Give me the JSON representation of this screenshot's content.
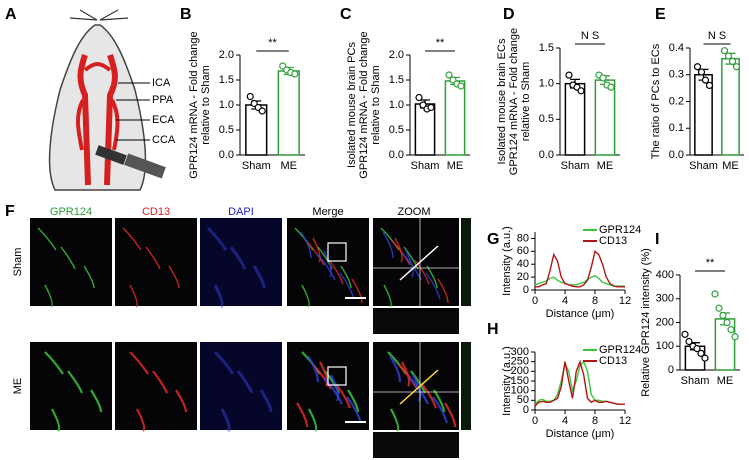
{
  "panel_labels": [
    "A",
    "B",
    "C",
    "D",
    "E",
    "F",
    "G",
    "H",
    "I"
  ],
  "diagram": {
    "labels": [
      "ICA",
      "PPA",
      "ECA",
      "CCA"
    ]
  },
  "image_grid": {
    "columns": [
      "GPR124",
      "CD13",
      "DAPI",
      "Merge",
      "ZOOM"
    ],
    "rows": [
      "Sham",
      "ME"
    ]
  },
  "chart_data": [
    {
      "type": "bar",
      "ylabel": [
        "GPR124 mRNA - Fold change",
        "relative to Sham"
      ],
      "categories": [
        "Sham",
        "ME"
      ],
      "colors": [
        "#000000",
        "#2e9e3a"
      ],
      "values": [
        1.0,
        1.68
      ],
      "errors": [
        0.08,
        0.07
      ],
      "points": [
        [
          1.17,
          1.03,
          0.95,
          0.88
        ],
        [
          1.78,
          1.7,
          1.65,
          1.62
        ]
      ],
      "ylim": [
        0,
        2
      ],
      "yticks": [
        {
          "value": 0,
          "label": "0.0"
        },
        0.5,
        {
          "value": 1,
          "label": "1.0"
        },
        1.5,
        {
          "value": 2,
          "label": "2.0"
        }
      ],
      "annotation": "**"
    },
    {
      "type": "bar",
      "ylabel": [
        "Isolated mouse brain PCs",
        "GPR124 mRNA - Fold change",
        "relative to Sham"
      ],
      "categories": [
        "Sham",
        "ME"
      ],
      "colors": [
        "#000000",
        "#2e9e3a"
      ],
      "values": [
        1.02,
        1.48
      ],
      "errors": [
        0.08,
        0.07
      ],
      "points": [
        [
          1.15,
          1.0,
          0.92,
          0.95
        ],
        [
          1.6,
          1.5,
          1.42,
          1.38
        ]
      ],
      "ylim": [
        0,
        2
      ],
      "yticks": [
        {
          "value": 0,
          "label": "0.0"
        },
        0.5,
        {
          "value": 1,
          "label": "1.0"
        },
        1.5,
        {
          "value": 2,
          "label": "2.0"
        }
      ],
      "annotation": "**"
    },
    {
      "type": "bar",
      "ylabel": [
        "Isolated mouse brain ECs",
        "GPR124 mRNA - Fold change",
        "relative to Sham"
      ],
      "categories": [
        "Sham",
        "ME"
      ],
      "colors": [
        "#000000",
        "#2e9e3a"
      ],
      "values": [
        1.0,
        1.05
      ],
      "errors": [
        0.06,
        0.06
      ],
      "points": [
        [
          1.12,
          0.98,
          0.95,
          0.9
        ],
        [
          1.12,
          1.08,
          0.98,
          0.95
        ]
      ],
      "ylim": [
        0,
        1.5
      ],
      "yticks": [
        {
          "value": 0,
          "label": "0.0"
        },
        0.5,
        {
          "value": 1,
          "label": "1.0"
        },
        1.5
      ],
      "annotation": "N S"
    },
    {
      "type": "bar",
      "ylabel": [
        "The ratio of PCs to ECs"
      ],
      "categories": [
        "Sham",
        "ME"
      ],
      "colors": [
        "#000000",
        "#2e9e3a"
      ],
      "values": [
        0.3,
        0.36
      ],
      "errors": [
        0.02,
        0.02
      ],
      "points": [
        [
          0.33,
          0.31,
          0.28,
          0.26
        ],
        [
          0.39,
          0.37,
          0.35,
          0.33
        ]
      ],
      "ylim": [
        0,
        0.4
      ],
      "yticks": [
        {
          "value": 0,
          "label": "0.0"
        },
        0.1,
        0.2,
        0.3,
        0.4
      ],
      "annotation": "N S"
    },
    {
      "type": "line",
      "xlabel": "Distance (μm)",
      "ylabel": [
        "Intensity (a.u.)"
      ],
      "x": [
        0,
        0.5,
        1,
        1.5,
        2,
        2.5,
        3,
        3.5,
        4,
        4.5,
        5,
        5.5,
        6,
        6.5,
        7,
        7.5,
        8,
        8.5,
        9,
        9.5,
        10,
        10.5,
        11,
        11.5,
        12
      ],
      "series": [
        {
          "name": "GPR124",
          "color": "#3cc43c",
          "values": [
            8,
            10,
            12,
            14,
            18,
            20,
            15,
            12,
            10,
            8,
            8,
            8,
            10,
            12,
            16,
            20,
            22,
            18,
            12,
            10,
            8,
            6,
            6,
            6,
            6
          ]
        },
        {
          "name": "CD13",
          "color": "#b01515",
          "values": [
            5,
            5,
            8,
            10,
            30,
            55,
            45,
            20,
            10,
            8,
            6,
            5,
            5,
            8,
            15,
            35,
            60,
            55,
            40,
            20,
            10,
            6,
            5,
            5,
            5
          ]
        }
      ],
      "xlim": [
        0,
        12
      ],
      "xticks": [
        0,
        4,
        8,
        12
      ],
      "ylim": [
        0,
        90
      ],
      "yticks": [
        0,
        20,
        40,
        60,
        80
      ]
    },
    {
      "type": "line",
      "xlabel": "Distance (μm)",
      "ylabel": [
        "Intensity (a.u.)"
      ],
      "x": [
        0,
        0.5,
        1,
        1.5,
        2,
        2.5,
        3,
        3.5,
        4,
        4.5,
        5,
        5.5,
        6,
        6.5,
        7,
        7.5,
        8,
        8.5,
        9,
        9.5,
        10,
        10.5,
        11,
        11.5,
        12
      ],
      "series": [
        {
          "name": "GPR124",
          "color": "#3cc43c",
          "values": [
            30,
            50,
            55,
            45,
            45,
            50,
            80,
            150,
            240,
            200,
            100,
            150,
            230,
            250,
            200,
            80,
            50,
            50,
            45,
            45,
            40,
            35,
            30,
            30,
            30
          ]
        },
        {
          "name": "CD13",
          "color": "#b01515",
          "values": [
            20,
            40,
            45,
            40,
            40,
            50,
            60,
            120,
            250,
            150,
            60,
            200,
            250,
            180,
            60,
            40,
            50,
            40,
            40,
            45,
            40,
            35,
            30,
            30,
            30
          ]
        }
      ],
      "xlim": [
        0,
        12
      ],
      "xticks": [
        0,
        4,
        8,
        12
      ],
      "ylim": [
        0,
        300
      ],
      "yticks": [
        0,
        50,
        100,
        150,
        200,
        250,
        300
      ]
    },
    {
      "type": "bar",
      "ylabel": [
        "Relative GPR124 intensity (%)"
      ],
      "categories": [
        "Sham",
        "ME"
      ],
      "colors": [
        "#000000",
        "#2e9e3a"
      ],
      "values": [
        100,
        215
      ],
      "errors": [
        15,
        25
      ],
      "points": [
        [
          150,
          120,
          100,
          90,
          70,
          50
        ],
        [
          320,
          260,
          230,
          200,
          170,
          140
        ]
      ],
      "ylim": [
        0,
        400
      ],
      "yticks": [
        0,
        100,
        200,
        300,
        400
      ],
      "annotation": "**"
    }
  ]
}
